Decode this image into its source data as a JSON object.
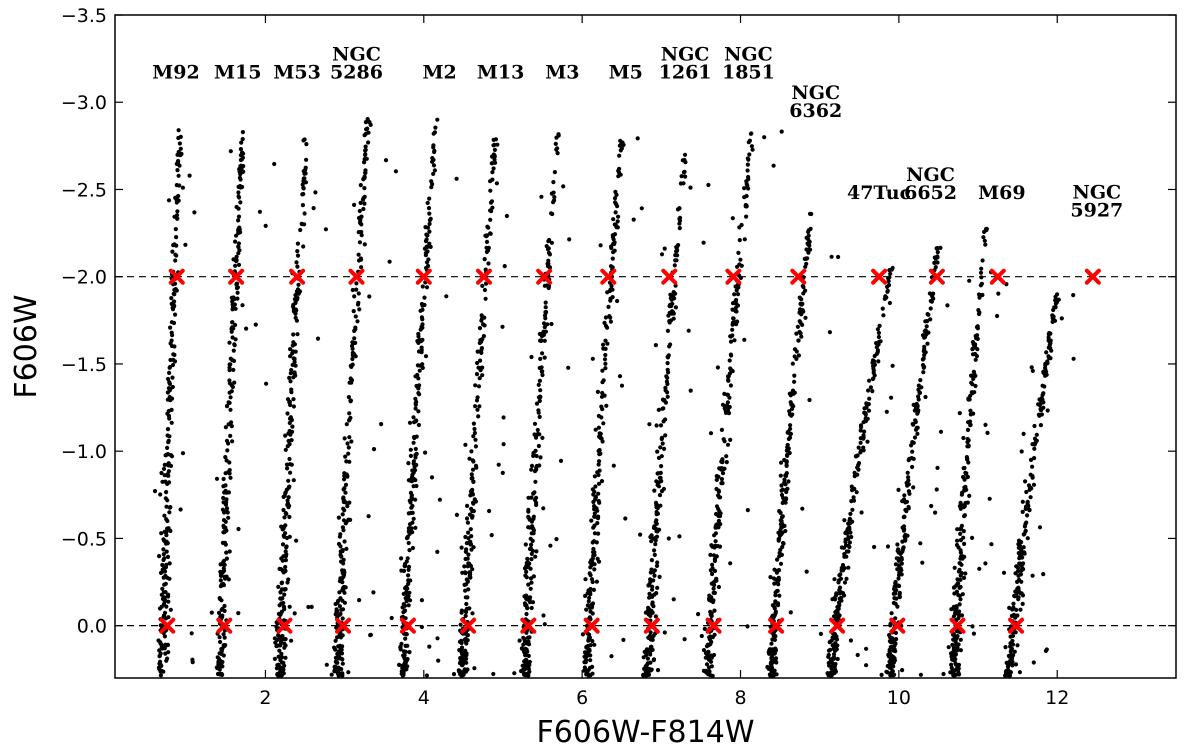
{
  "chart_data": {
    "type": "scatter",
    "xlabel": "F606W-F814W",
    "ylabel": "F606W",
    "xlim": [
      0.1,
      13.5
    ],
    "ylim": [
      0.3,
      -3.5
    ],
    "y_inverted": true,
    "grid": false,
    "x_ticks": [
      2,
      4,
      6,
      8,
      10,
      12
    ],
    "x_tick_labels": [
      "2",
      "4",
      "6",
      "8",
      "10",
      "12"
    ],
    "y_ticks": [
      0.0,
      -0.5,
      -1.0,
      -1.5,
      -2.0,
      -2.5,
      -3.0,
      -3.5
    ],
    "y_tick_labels": [
      "0.0",
      "−0.5",
      "−1.0",
      "−1.5",
      "−2.0",
      "−2.5",
      "−3.0",
      "−3.5"
    ],
    "reference_lines": [
      {
        "axis": "y",
        "value": -2.0,
        "style": "dashed",
        "color": "#000000"
      },
      {
        "axis": "y",
        "value": 0.0,
        "style": "dashed",
        "color": "#000000"
      }
    ],
    "marker_color": "#ff0000",
    "point_color": "#000000",
    "clusters": [
      {
        "label": [
          "M92"
        ],
        "label_x": 0.87,
        "label_y": -3.17,
        "top_x": 0.92,
        "bottom_x": 0.7,
        "top_mag": -2.85,
        "markers": [
          {
            "x": 0.76,
            "y": 0.0
          },
          {
            "x": 0.88,
            "y": -2.0
          }
        ]
      },
      {
        "label": [
          "M15"
        ],
        "label_x": 1.65,
        "label_y": -3.17,
        "top_x": 1.72,
        "bottom_x": 1.43,
        "top_mag": -2.85,
        "markers": [
          {
            "x": 1.48,
            "y": 0.0
          },
          {
            "x": 1.63,
            "y": -2.0
          }
        ]
      },
      {
        "label": [
          "M53"
        ],
        "label_x": 2.4,
        "label_y": -3.17,
        "top_x": 2.52,
        "bottom_x": 2.18,
        "top_mag": -2.8,
        "markers": [
          {
            "x": 2.24,
            "y": 0.0
          },
          {
            "x": 2.4,
            "y": -2.0
          }
        ]
      },
      {
        "label": [
          "NGC",
          "5286"
        ],
        "label_x": 3.15,
        "label_y": -3.17,
        "top_x": 3.3,
        "bottom_x": 2.92,
        "top_mag": -2.95,
        "markers": [
          {
            "x": 2.98,
            "y": 0.0
          },
          {
            "x": 3.15,
            "y": -2.0
          }
        ]
      },
      {
        "label": [
          "M2"
        ],
        "label_x": 4.2,
        "label_y": -3.17,
        "top_x": 4.15,
        "bottom_x": 3.75,
        "top_mag": -2.9,
        "markers": [
          {
            "x": 3.8,
            "y": 0.0
          },
          {
            "x": 4.0,
            "y": -2.0
          }
        ]
      },
      {
        "label": [
          "M13"
        ],
        "label_x": 4.97,
        "label_y": -3.17,
        "top_x": 4.9,
        "bottom_x": 4.5,
        "top_mag": -2.8,
        "markers": [
          {
            "x": 4.56,
            "y": 0.0
          },
          {
            "x": 4.76,
            "y": -2.0
          }
        ]
      },
      {
        "label": [
          "M3"
        ],
        "label_x": 5.75,
        "label_y": -3.17,
        "top_x": 5.7,
        "bottom_x": 5.28,
        "top_mag": -2.85,
        "markers": [
          {
            "x": 5.32,
            "y": 0.0
          },
          {
            "x": 5.52,
            "y": -2.0
          }
        ]
      },
      {
        "label": [
          "M5"
        ],
        "label_x": 6.55,
        "label_y": -3.17,
        "top_x": 6.5,
        "bottom_x": 6.07,
        "top_mag": -2.8,
        "markers": [
          {
            "x": 6.12,
            "y": 0.0
          },
          {
            "x": 6.33,
            "y": -2.0
          }
        ]
      },
      {
        "label": [
          "NGC",
          "1261"
        ],
        "label_x": 7.3,
        "label_y": -3.17,
        "top_x": 7.3,
        "bottom_x": 6.83,
        "top_mag": -2.7,
        "markers": [
          {
            "x": 6.88,
            "y": 0.0
          },
          {
            "x": 7.1,
            "y": -2.0
          }
        ]
      },
      {
        "label": [
          "NGC",
          "1851"
        ],
        "label_x": 8.1,
        "label_y": -3.17,
        "top_x": 8.15,
        "bottom_x": 7.6,
        "top_mag": -2.85,
        "markers": [
          {
            "x": 7.66,
            "y": 0.0
          },
          {
            "x": 7.91,
            "y": -2.0
          }
        ]
      },
      {
        "label": [
          "NGC",
          "6362"
        ],
        "label_x": 8.95,
        "label_y": -2.95,
        "top_x": 8.9,
        "bottom_x": 8.4,
        "top_mag": -2.4,
        "markers": [
          {
            "x": 8.45,
            "y": 0.0
          },
          {
            "x": 8.73,
            "y": -2.0
          }
        ]
      },
      {
        "label": [
          "47Tuc"
        ],
        "label_x": 9.75,
        "label_y": -2.48,
        "top_x": 9.9,
        "bottom_x": 9.15,
        "top_mag": -2.05,
        "markers": [
          {
            "x": 9.22,
            "y": 0.0
          },
          {
            "x": 9.75,
            "y": -2.0
          }
        ]
      },
      {
        "label": [
          "NGC",
          "6652"
        ],
        "label_x": 10.4,
        "label_y": -2.48,
        "top_x": 10.5,
        "bottom_x": 9.9,
        "top_mag": -2.2,
        "markers": [
          {
            "x": 9.98,
            "y": 0.0
          },
          {
            "x": 10.48,
            "y": -2.0
          }
        ]
      },
      {
        "label": [
          "M69"
        ],
        "label_x": 11.3,
        "label_y": -2.48,
        "top_x": 11.1,
        "bottom_x": 10.7,
        "top_mag": -2.3,
        "markers": [
          {
            "x": 10.74,
            "y": 0.0
          },
          {
            "x": 11.25,
            "y": -2.0
          }
        ]
      },
      {
        "label": [
          "NGC",
          "5927"
        ],
        "label_x": 12.5,
        "label_y": -2.38,
        "top_x": 12.0,
        "bottom_x": 11.4,
        "top_mag": -1.9,
        "markers": [
          {
            "x": 11.48,
            "y": 0.0
          },
          {
            "x": 12.45,
            "y": -2.0
          }
        ]
      }
    ]
  }
}
